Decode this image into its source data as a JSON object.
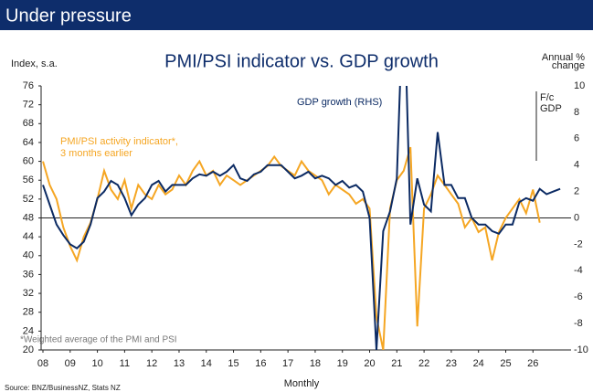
{
  "chart_data": {
    "type": "line",
    "header": "Under pressure",
    "title": "PMI/PSI indicator vs. GDP growth",
    "y_label": "Index, s.a.",
    "y2_label": [
      "Annual %",
      "change"
    ],
    "x_label": "Monthly",
    "annotations": [
      "GDP growth (RHS)",
      "PMI/PSI activity indicator*,",
      "3 months earlier",
      "F/c",
      "GDP",
      "*Weighted average of the PMI and PSI"
    ],
    "source": "Source: BNZ/BusinessNZ, Stats NZ",
    "xlim": [
      2008,
      2027.4
    ],
    "xticks": [
      {
        "value": 2008,
        "label": "08"
      },
      {
        "value": 2009,
        "label": "09"
      },
      {
        "value": 2010,
        "label": "10"
      },
      {
        "value": 2011,
        "label": "11"
      },
      {
        "value": 2012,
        "label": "12"
      },
      {
        "value": 2013,
        "label": "13"
      },
      {
        "value": 2014,
        "label": "14"
      },
      {
        "value": 2015,
        "label": "15"
      },
      {
        "value": 2016,
        "label": "16"
      },
      {
        "value": 2017,
        "label": "17"
      },
      {
        "value": 2018,
        "label": "18"
      },
      {
        "value": 2019,
        "label": "19"
      },
      {
        "value": 2020,
        "label": "20"
      },
      {
        "value": 2021,
        "label": "21"
      },
      {
        "value": 2022,
        "label": "22"
      },
      {
        "value": 2023,
        "label": "23"
      },
      {
        "value": 2024,
        "label": "24"
      },
      {
        "value": 2025,
        "label": "25"
      },
      {
        "value": 2026,
        "label": "26"
      }
    ],
    "ylim": [
      20,
      76
    ],
    "yticks": [
      20,
      24,
      28,
      32,
      36,
      40,
      44,
      48,
      52,
      56,
      60,
      64,
      68,
      72,
      76
    ],
    "y2lim": [
      -10,
      10
    ],
    "y2ticks": [
      -10,
      -8,
      -6,
      -4,
      -2,
      0,
      2,
      4,
      6,
      8,
      10
    ],
    "ref_line": 48,
    "series": [
      {
        "name": "PMI/PSI activity indicator",
        "color": "#f5a623",
        "axis": "y",
        "x": [
          2008,
          2008.25,
          2008.5,
          2008.75,
          2009,
          2009.25,
          2009.5,
          2009.75,
          2010,
          2010.25,
          2010.5,
          2010.75,
          2011,
          2011.25,
          2011.5,
          2011.75,
          2012,
          2012.25,
          2012.5,
          2012.75,
          2013,
          2013.25,
          2013.5,
          2013.75,
          2014,
          2014.25,
          2014.5,
          2014.75,
          2015,
          2015.25,
          2015.5,
          2015.75,
          2016,
          2016.25,
          2016.5,
          2016.75,
          2017,
          2017.25,
          2017.5,
          2017.75,
          2018,
          2018.25,
          2018.5,
          2018.75,
          2019,
          2019.25,
          2019.5,
          2019.75,
          2020,
          2020.25,
          2020.5,
          2020.75,
          2021,
          2021.25,
          2021.5,
          2021.75,
          2022,
          2022.25,
          2022.5,
          2022.75,
          2023,
          2023.25,
          2023.5,
          2023.75,
          2024,
          2024.25,
          2024.5,
          2024.75,
          2025,
          2025.25,
          2025.5,
          2025.75,
          2026,
          2026.25
        ],
        "values": [
          60,
          55,
          52,
          46,
          42,
          39,
          44,
          47,
          52,
          58,
          54,
          52,
          56,
          50,
          55,
          53,
          52,
          55,
          53,
          54,
          57,
          55,
          58,
          60,
          57,
          58,
          55,
          57,
          56,
          55,
          56,
          57,
          58,
          59,
          61,
          59,
          58,
          57,
          60,
          58,
          57,
          56,
          53,
          55,
          54,
          53,
          51,
          52,
          50,
          27,
          20,
          50,
          56,
          58,
          63,
          25,
          50,
          53,
          57,
          55,
          53,
          51,
          46,
          48,
          45,
          46,
          39,
          45,
          48,
          50,
          52,
          49,
          54,
          47
        ]
      },
      {
        "name": "GDP growth (RHS)",
        "color": "#0b2a63",
        "axis": "y2",
        "x": [
          2008,
          2008.25,
          2008.5,
          2008.75,
          2009,
          2009.25,
          2009.5,
          2009.75,
          2010,
          2010.25,
          2010.5,
          2010.75,
          2011,
          2011.25,
          2011.5,
          2011.75,
          2012,
          2012.25,
          2012.5,
          2012.75,
          2013,
          2013.25,
          2013.5,
          2013.75,
          2014,
          2014.25,
          2014.5,
          2014.75,
          2015,
          2015.25,
          2015.5,
          2015.75,
          2016,
          2016.25,
          2016.5,
          2016.75,
          2017,
          2017.25,
          2017.5,
          2017.75,
          2018,
          2018.25,
          2018.5,
          2018.75,
          2019,
          2019.25,
          2019.5,
          2019.75,
          2020,
          2020.25,
          2020.5,
          2020.75,
          2021,
          2021.25,
          2021.5,
          2021.75,
          2022,
          2022.25,
          2022.5,
          2022.75,
          2023,
          2023.25,
          2023.5,
          2023.75,
          2024,
          2024.25,
          2024.5,
          2024.75,
          2025,
          2025.25,
          2025.5,
          2025.75,
          2026,
          2026.25,
          2026.5,
          2026.75,
          2027
        ],
        "values": [
          2.5,
          1,
          -0.5,
          -1.3,
          -2,
          -2.3,
          -1.8,
          -0.5,
          1.5,
          2,
          2.8,
          2.5,
          1.5,
          0.2,
          1,
          1.5,
          2.5,
          2.8,
          2,
          2.5,
          2.5,
          2.5,
          3,
          3.3,
          3.2,
          3.5,
          3.2,
          3.5,
          4,
          3,
          2.8,
          3.3,
          3.5,
          4,
          4,
          4,
          3.5,
          3,
          3.2,
          3.5,
          3,
          3.2,
          3,
          2.5,
          2.8,
          2.3,
          2.5,
          2,
          0,
          -10,
          -1,
          0.5,
          3,
          18,
          -0.5,
          3,
          1,
          0.5,
          6.5,
          2.5,
          2.5,
          1.5,
          1.5,
          0,
          -0.5,
          -0.5,
          -1,
          -1.2,
          -0.5,
          -0.5,
          1.2,
          1.5,
          1.3,
          2.2,
          1.8,
          2,
          2.2
        ]
      }
    ]
  }
}
